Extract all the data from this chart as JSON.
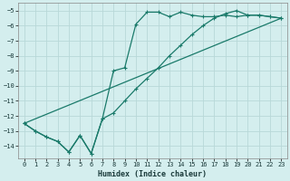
{
  "xlabel": "Humidex (Indice chaleur)",
  "xlim": [
    -0.5,
    23.5
  ],
  "ylim": [
    -14.8,
    -4.5
  ],
  "yticks": [
    -5,
    -6,
    -7,
    -8,
    -9,
    -10,
    -11,
    -12,
    -13,
    -14
  ],
  "xticks": [
    0,
    1,
    2,
    3,
    4,
    5,
    6,
    7,
    8,
    9,
    10,
    11,
    12,
    13,
    14,
    15,
    16,
    17,
    18,
    19,
    20,
    21,
    22,
    23
  ],
  "bg_color": "#d4eeee",
  "grid_color": "#b8d8d8",
  "line_color": "#1a7a6a",
  "line1_x": [
    0,
    1,
    2,
    3,
    4,
    5,
    6,
    7,
    8,
    9,
    10,
    11,
    12,
    13,
    14,
    15,
    16,
    17,
    18,
    19,
    20,
    21,
    22,
    23
  ],
  "line1_y": [
    -12.5,
    -13.0,
    -13.4,
    -13.7,
    -14.4,
    -13.3,
    -14.5,
    -12.2,
    -9.0,
    -8.8,
    -5.9,
    -5.1,
    -5.1,
    -5.4,
    -5.1,
    -5.3,
    -5.4,
    -5.4,
    -5.3,
    -5.4,
    -5.3,
    -5.3,
    -5.4,
    -5.5
  ],
  "line2_x": [
    0,
    1,
    2,
    3,
    4,
    5,
    6,
    7,
    8,
    9,
    10,
    11,
    12,
    13,
    14,
    15,
    16,
    17,
    18,
    19,
    20,
    21,
    22,
    23
  ],
  "line2_y": [
    -12.5,
    -13.0,
    -13.4,
    -13.7,
    -14.4,
    -13.3,
    -14.5,
    -12.2,
    -11.8,
    -11.0,
    -10.2,
    -9.5,
    -8.8,
    -8.0,
    -7.3,
    -6.6,
    -6.0,
    -5.5,
    -5.2,
    -5.0,
    -5.3,
    -5.3,
    -5.4,
    -5.5
  ],
  "line3_x": [
    0,
    23
  ],
  "line3_y": [
    -12.5,
    -5.5
  ]
}
